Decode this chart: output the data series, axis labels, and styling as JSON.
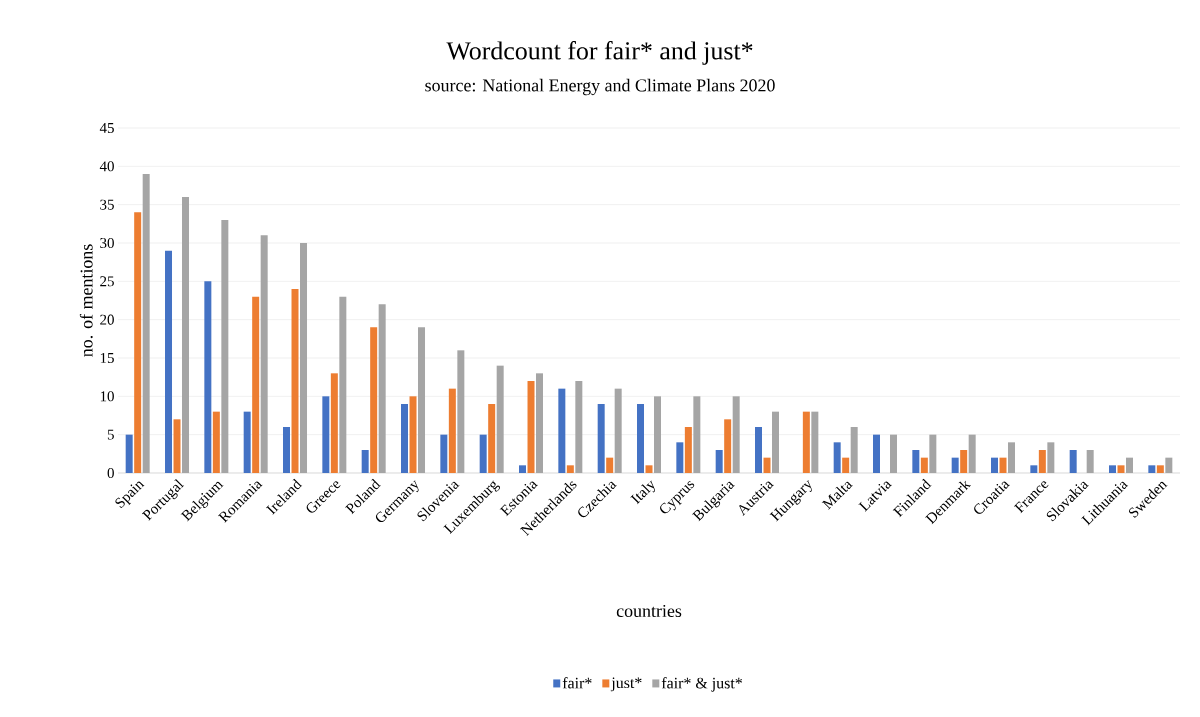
{
  "chart_data": {
    "type": "bar",
    "title": "Wordcount for fair* and just*",
    "subtitle": "source: National Energy and Climate Plans 2020",
    "xlabel": "countries",
    "ylabel": "no. of mentions",
    "categories": [
      "Spain",
      "Portugal",
      "Belgium",
      "Romania",
      "Ireland",
      "Greece",
      "Poland",
      "Germany",
      "Slovenia",
      "Luxemburg",
      "Estonia",
      "Netherlands",
      "Czechia",
      "Italy",
      "Cyprus",
      "Bulgaria",
      "Austria",
      "Hungary",
      "Malta",
      "Latvia",
      "Finland",
      "Denmark",
      "Croatia",
      "France",
      "Slovakia",
      "Lithuania",
      "Sweden"
    ],
    "series": [
      {
        "name": "fair*",
        "color": "#4472c4",
        "values": [
          5,
          29,
          25,
          8,
          6,
          10,
          3,
          9,
          5,
          5,
          1,
          11,
          9,
          9,
          4,
          3,
          6,
          0,
          4,
          5,
          3,
          2,
          2,
          1,
          3,
          1,
          1
        ]
      },
      {
        "name": "just*",
        "color": "#ed7d31",
        "values": [
          34,
          7,
          8,
          23,
          24,
          13,
          19,
          10,
          11,
          9,
          12,
          1,
          2,
          1,
          6,
          7,
          2,
          8,
          2,
          0,
          2,
          3,
          2,
          3,
          0,
          1,
          1
        ]
      },
      {
        "name": "fair* & just*",
        "color": "#a5a5a5",
        "values": [
          39,
          36,
          33,
          31,
          30,
          23,
          22,
          19,
          16,
          14,
          13,
          12,
          11,
          10,
          10,
          10,
          8,
          8,
          6,
          5,
          5,
          5,
          4,
          4,
          3,
          2,
          2
        ]
      }
    ],
    "ylim": [
      0,
      45
    ],
    "yticks": [
      0,
      5,
      10,
      15,
      20,
      25,
      30,
      35,
      40,
      45
    ],
    "grid": "y",
    "legend": "bottom"
  }
}
